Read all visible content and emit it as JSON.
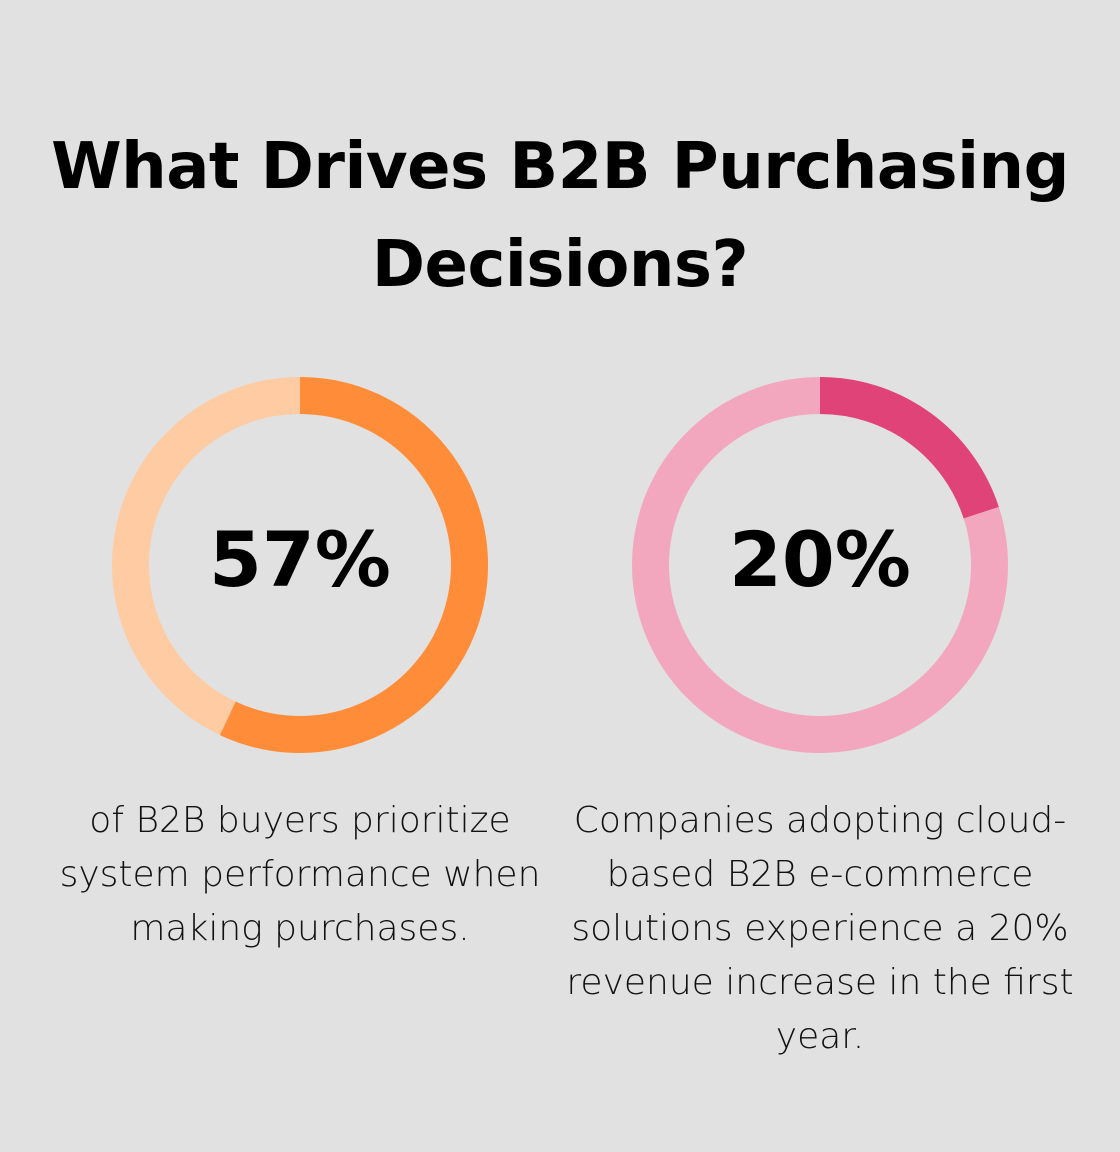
{
  "title": "What Drives B2B Purchasing Decisions?",
  "chart_data": [
    {
      "type": "pie",
      "variant": "donut",
      "value": 57,
      "unit": "%",
      "label": "57%",
      "description": "of B2B buyers prioritize system performance when making purchases.",
      "colors": {
        "fill": "#ff8c38",
        "track": "#ffcba3"
      }
    },
    {
      "type": "pie",
      "variant": "donut",
      "value": 20,
      "unit": "%",
      "label": "20%",
      "description": "Companies adopting cloud-based B2B e-commerce solutions experience a 20% revenue increase in the first year.",
      "colors": {
        "fill": "#e04377",
        "track": "#f2a7bf"
      }
    }
  ],
  "background": "#e0e1e0"
}
